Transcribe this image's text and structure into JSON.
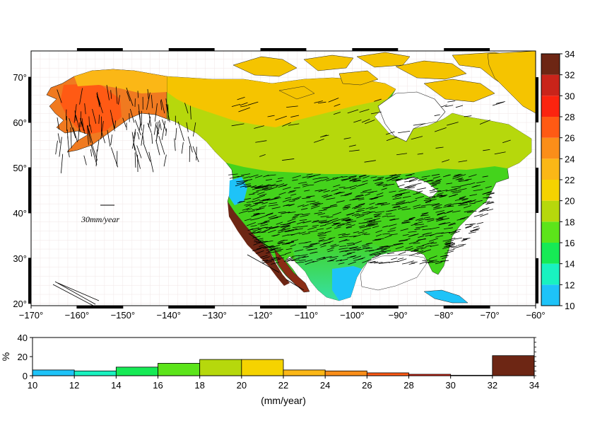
{
  "map": {
    "lon_ticks": [
      "−170°",
      "−160°",
      "−150°",
      "−140°",
      "−130°",
      "−120°",
      "−110°",
      "−100°",
      "−90°",
      "−80°",
      "−70°",
      "−60°"
    ],
    "lat_ticks": [
      "20°",
      "30°",
      "40°",
      "50°",
      "60°",
      "70°"
    ],
    "lon_values": [
      -170,
      -160,
      -150,
      -140,
      -130,
      -120,
      -110,
      -100,
      -90,
      -80,
      -70,
      -60
    ],
    "lat_values": [
      20,
      30,
      40,
      50,
      60,
      70
    ],
    "lon_range": [
      -170,
      -60
    ],
    "lat_range": [
      19.5,
      75.8
    ],
    "scale_vector_label": "30mm/year",
    "ocean_color": "#ffffff",
    "land_colors": {
      "arctic": "#f5c400",
      "boreal": "#b8d412",
      "us": "#44d31c",
      "southwest": "#36e0a4",
      "gulf": "#22b8f0",
      "alaska": "#f07a20",
      "coast": "#8a2c14"
    }
  },
  "colorbar": {
    "labels": [
      "10",
      "12",
      "14",
      "16",
      "18",
      "20",
      "22",
      "24",
      "26",
      "28",
      "30",
      "32",
      "34"
    ],
    "boundaries": [
      10,
      12,
      14,
      16,
      18,
      20,
      22,
      24,
      26,
      28,
      30,
      32,
      34
    ],
    "colors": [
      "#1ec3f8",
      "#19f2c0",
      "#16ea55",
      "#5ce41a",
      "#b6d80c",
      "#f5d300",
      "#fbb716",
      "#fb8e19",
      "#ff5a14",
      "#fb240f",
      "#c9241a",
      "#6d2614"
    ]
  },
  "chart_data": {
    "type": "bar",
    "bins": [
      [
        10,
        12
      ],
      [
        12,
        14
      ],
      [
        14,
        16
      ],
      [
        16,
        18
      ],
      [
        18,
        20
      ],
      [
        20,
        22
      ],
      [
        22,
        24
      ],
      [
        24,
        26
      ],
      [
        26,
        28
      ],
      [
        28,
        30
      ],
      [
        30,
        32
      ],
      [
        32,
        34
      ]
    ],
    "values": [
      6,
      5,
      9,
      13,
      17,
      17,
      6,
      5,
      3,
      1.5,
      0.5,
      21
    ],
    "colors": [
      "#1ec3f8",
      "#19f2c0",
      "#16ea55",
      "#5ce41a",
      "#b6d80c",
      "#f5d300",
      "#fbb716",
      "#fb8e19",
      "#ff5a14",
      "#fb240f",
      "#c9241a",
      "#6d2614"
    ],
    "xticks": [
      "10",
      "12",
      "14",
      "16",
      "18",
      "20",
      "22",
      "24",
      "26",
      "28",
      "30",
      "32",
      "34"
    ],
    "yticks": [
      "0",
      "20",
      "40"
    ],
    "ylim": [
      0,
      40
    ],
    "xlim": [
      10,
      34
    ],
    "xlabel": "(mm/year)",
    "ylabel": "%"
  }
}
